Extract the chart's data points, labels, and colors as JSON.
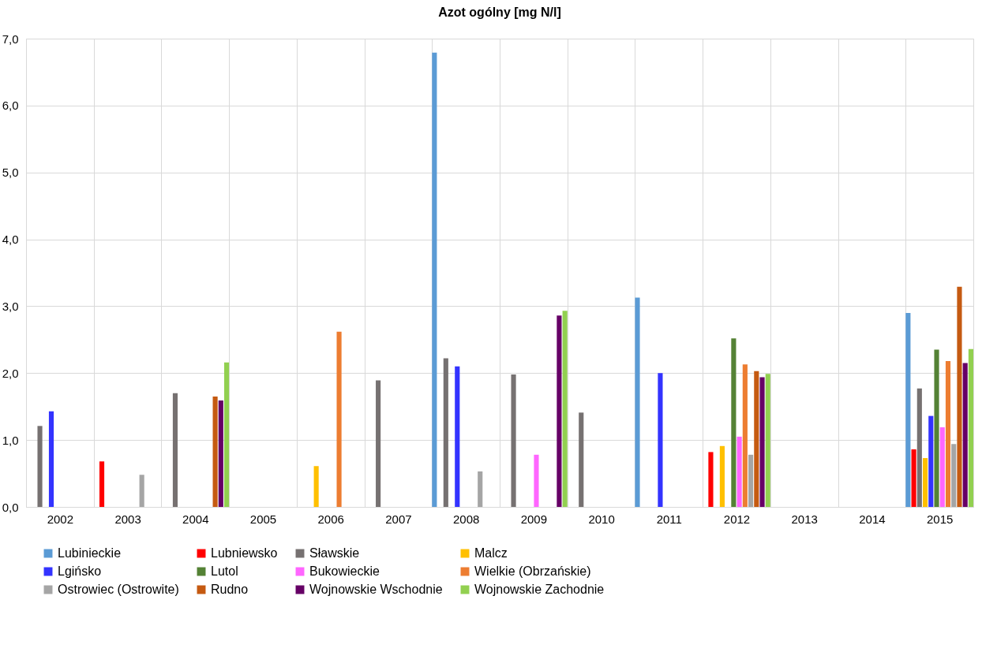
{
  "chart_data": {
    "type": "bar",
    "title": "Azot ogólny [mg N/l]",
    "categories": [
      "2002",
      "2003",
      "2004",
      "2005",
      "2006",
      "2007",
      "2008",
      "2009",
      "2010",
      "2011",
      "2012",
      "2013",
      "2014",
      "2015"
    ],
    "series": [
      {
        "name": "Lubinieckie",
        "color": "#5b9bd5",
        "values": [
          null,
          null,
          null,
          null,
          null,
          null,
          6.79,
          null,
          null,
          3.13,
          null,
          null,
          null,
          2.9
        ]
      },
      {
        "name": "Lubniewsko",
        "color": "#ff0000",
        "values": [
          null,
          0.68,
          null,
          null,
          null,
          null,
          null,
          null,
          null,
          null,
          0.82,
          null,
          null,
          0.86
        ]
      },
      {
        "name": "Sławskie",
        "color": "#767171",
        "values": [
          1.21,
          null,
          1.7,
          null,
          null,
          1.89,
          2.22,
          1.98,
          1.41,
          null,
          null,
          null,
          null,
          1.77
        ]
      },
      {
        "name": "Malcz",
        "color": "#ffc000",
        "values": [
          null,
          null,
          null,
          null,
          0.61,
          null,
          null,
          null,
          null,
          null,
          0.91,
          null,
          null,
          0.73
        ]
      },
      {
        "name": "Lgińsko",
        "color": "#3333ff",
        "values": [
          1.43,
          null,
          null,
          null,
          null,
          null,
          2.1,
          null,
          null,
          2.0,
          null,
          null,
          null,
          1.36
        ]
      },
      {
        "name": "Lutol",
        "color": "#548235",
        "values": [
          null,
          null,
          null,
          null,
          null,
          null,
          null,
          null,
          null,
          null,
          2.52,
          null,
          null,
          2.35
        ]
      },
      {
        "name": "Bukowieckie",
        "color": "#ff66ff",
        "values": [
          null,
          null,
          null,
          null,
          null,
          null,
          null,
          0.78,
          null,
          null,
          1.05,
          null,
          null,
          1.19
        ]
      },
      {
        "name": "Wielkie (Obrzańskie)",
        "color": "#ed7d31",
        "values": [
          null,
          null,
          null,
          null,
          2.62,
          null,
          null,
          null,
          null,
          null,
          2.13,
          null,
          null,
          2.18
        ]
      },
      {
        "name": "Ostrowiec (Ostrowite)",
        "color": "#a5a5a5",
        "values": [
          null,
          0.48,
          null,
          null,
          null,
          null,
          0.53,
          null,
          null,
          null,
          0.78,
          null,
          null,
          0.94
        ]
      },
      {
        "name": "Rudno",
        "color": "#c55a11",
        "values": [
          null,
          null,
          1.65,
          null,
          null,
          null,
          null,
          null,
          null,
          null,
          2.03,
          null,
          null,
          3.29
        ]
      },
      {
        "name": "Wojnowskie Wschodnie",
        "color": "#660066",
        "values": [
          null,
          null,
          1.59,
          null,
          null,
          null,
          null,
          2.86,
          null,
          null,
          1.94,
          null,
          null,
          2.15
        ]
      },
      {
        "name": "Wojnowskie Zachodnie",
        "color": "#92d050",
        "values": [
          null,
          null,
          2.16,
          null,
          null,
          null,
          null,
          2.93,
          null,
          null,
          1.99,
          null,
          null,
          2.36
        ]
      }
    ],
    "ylim": [
      0,
      7
    ],
    "yticks": [
      {
        "value": 0,
        "label": "0,0"
      },
      {
        "value": 1,
        "label": "1,0"
      },
      {
        "value": 2,
        "label": "2,0"
      },
      {
        "value": 3,
        "label": "3,0"
      },
      {
        "value": 4,
        "label": "4,0"
      },
      {
        "value": 5,
        "label": "5,0"
      },
      {
        "value": 6,
        "label": "6,0"
      },
      {
        "value": 7,
        "label": "7,0"
      }
    ],
    "grid": true,
    "legend": "bottom"
  }
}
